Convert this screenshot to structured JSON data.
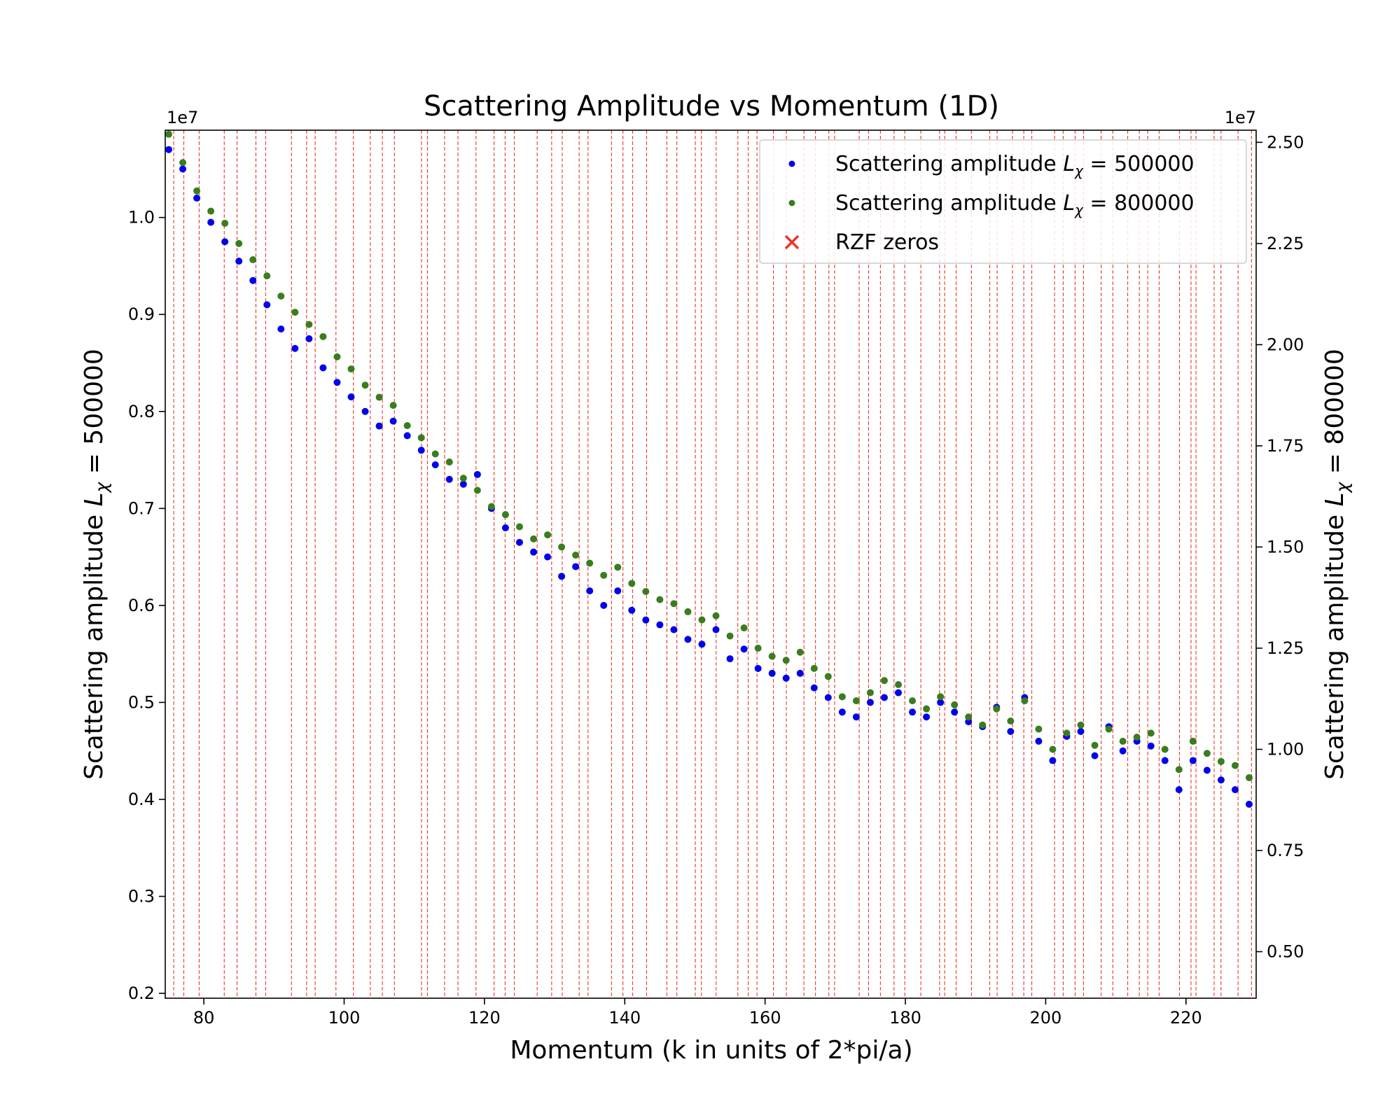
{
  "chart_data": {
    "type": "scatter",
    "title": "Scattering Amplitude vs Momentum (1D)",
    "xlabel": "Momentum (k in units of 2*pi/a)",
    "ylabel_left": {
      "prefix": "Scattering amplitude ",
      "symbol": "L",
      "sub": "χ",
      "suffix": " = 500000"
    },
    "ylabel_right": {
      "prefix": "Scattering amplitude ",
      "symbol": "L",
      "sub": "χ",
      "suffix": " = 800000"
    },
    "xlim": [
      74.5,
      230
    ],
    "ylim_left": [
      0.195,
      1.09
    ],
    "ylim_right": [
      0.385,
      2.53
    ],
    "y_offset_left": "1e7",
    "y_offset_right": "1e7",
    "x_ticks": [
      80,
      100,
      120,
      140,
      160,
      180,
      200,
      220
    ],
    "x_tick_labels": [
      "80",
      "100",
      "120",
      "140",
      "160",
      "180",
      "200",
      "220"
    ],
    "y_ticks_left": [
      0.2,
      0.3,
      0.4,
      0.5,
      0.6,
      0.7,
      0.8,
      0.9,
      1.0
    ],
    "y_tick_labels_left": [
      "0.2",
      "0.3",
      "0.4",
      "0.5",
      "0.6",
      "0.7",
      "0.8",
      "0.9",
      "1.0"
    ],
    "y_ticks_right": [
      0.5,
      0.75,
      1.0,
      1.25,
      1.5,
      1.75,
      2.0,
      2.25,
      2.5
    ],
    "y_tick_labels_right": [
      "0.50",
      "0.75",
      "1.00",
      "1.25",
      "1.50",
      "1.75",
      "2.00",
      "2.25",
      "2.50"
    ],
    "legend_position": "top-right",
    "grid": false,
    "colors": {
      "series_500000": "#0000ee",
      "series_800000": "#3a7d1e",
      "rzf_zeros": "#e8372a"
    },
    "rzf_zeros": [
      75.705,
      77.145,
      79.337,
      82.91,
      84.735,
      87.425,
      88.809,
      92.492,
      94.651,
      95.871,
      98.831,
      101.318,
      103.726,
      105.447,
      107.169,
      111.03,
      111.875,
      114.32,
      116.227,
      118.791,
      121.37,
      122.947,
      124.257,
      127.517,
      129.579,
      131.088,
      133.498,
      134.757,
      138.116,
      139.736,
      141.124,
      143.112,
      146.001,
      147.423,
      150.054,
      150.925,
      153.025,
      156.113,
      157.598,
      158.85,
      161.189,
      163.031,
      165.537,
      167.184,
      169.095,
      169.912,
      173.412,
      174.754,
      176.441,
      178.377,
      179.916,
      182.207,
      184.874,
      185.599,
      187.229,
      189.416,
      192.027,
      193.08,
      195.265,
      196.876,
      198.015,
      201.265,
      202.494,
      204.19,
      205.395,
      207.906,
      209.577,
      211.691,
      213.348,
      214.547,
      216.17,
      219.068,
      220.715,
      221.431,
      224.007,
      224.983,
      227.421,
      229.337
    ],
    "series": [
      {
        "name": "Scattering amplitude L_χ = 500000",
        "legend": {
          "prefix": "Scattering amplitude ",
          "symbol": "L",
          "sub": "χ",
          "suffix": " = 500000"
        },
        "axis": "left",
        "color": "#0000ee",
        "x": [
          75,
          77,
          79,
          81,
          83,
          85,
          87,
          89,
          91,
          93,
          95,
          97,
          99,
          101,
          103,
          105,
          107,
          109,
          111,
          113,
          115,
          117,
          119,
          121,
          123,
          125,
          127,
          129,
          131,
          133,
          135,
          137,
          139,
          141,
          143,
          145,
          147,
          149,
          151,
          153,
          155,
          157,
          159,
          161,
          163,
          165,
          167,
          169,
          171,
          173,
          175,
          177,
          179,
          181,
          183,
          185,
          187,
          189,
          191,
          193,
          195,
          197,
          199,
          201,
          203,
          205,
          207,
          209,
          211,
          213,
          215,
          217,
          219,
          221,
          223,
          225,
          227,
          229
        ],
        "y": [
          1.07,
          1.05,
          1.02,
          0.995,
          0.975,
          0.955,
          0.935,
          0.91,
          0.885,
          0.865,
          0.875,
          0.845,
          0.83,
          0.815,
          0.8,
          0.785,
          0.79,
          0.775,
          0.76,
          0.745,
          0.73,
          0.725,
          0.735,
          0.7,
          0.68,
          0.665,
          0.655,
          0.65,
          0.63,
          0.64,
          0.615,
          0.6,
          0.615,
          0.595,
          0.585,
          0.58,
          0.575,
          0.565,
          0.56,
          0.575,
          0.545,
          0.555,
          0.535,
          0.53,
          0.525,
          0.53,
          0.515,
          0.505,
          0.49,
          0.485,
          0.5,
          0.505,
          0.51,
          0.49,
          0.485,
          0.5,
          0.49,
          0.48,
          0.475,
          0.495,
          0.47,
          0.505,
          0.46,
          0.44,
          0.465,
          0.47,
          0.445,
          0.475,
          0.45,
          0.46,
          0.455,
          0.44,
          0.41,
          0.44,
          0.43,
          0.42,
          0.41,
          0.395
        ]
      },
      {
        "name": "Scattering amplitude L_χ = 800000",
        "legend": {
          "prefix": "Scattering amplitude ",
          "symbol": "L",
          "sub": "χ",
          "suffix": " = 800000"
        },
        "axis": "right",
        "color": "#3a7d1e",
        "x": [
          75,
          77,
          79,
          81,
          83,
          85,
          87,
          89,
          91,
          93,
          95,
          97,
          99,
          101,
          103,
          105,
          107,
          109,
          111,
          113,
          115,
          117,
          119,
          121,
          123,
          125,
          127,
          129,
          131,
          133,
          135,
          137,
          139,
          141,
          143,
          145,
          147,
          149,
          151,
          153,
          155,
          157,
          159,
          161,
          163,
          165,
          167,
          169,
          171,
          173,
          175,
          177,
          179,
          181,
          183,
          185,
          187,
          189,
          191,
          193,
          195,
          197,
          199,
          201,
          203,
          205,
          207,
          209,
          211,
          213,
          215,
          217,
          219,
          221,
          223,
          225,
          227,
          229
        ],
        "y": [
          2.52,
          2.45,
          2.38,
          2.33,
          2.3,
          2.25,
          2.21,
          2.17,
          2.12,
          2.08,
          2.05,
          2.02,
          1.97,
          1.94,
          1.9,
          1.87,
          1.85,
          1.8,
          1.77,
          1.73,
          1.71,
          1.67,
          1.64,
          1.6,
          1.58,
          1.55,
          1.52,
          1.53,
          1.5,
          1.48,
          1.46,
          1.43,
          1.45,
          1.41,
          1.39,
          1.37,
          1.36,
          1.34,
          1.32,
          1.33,
          1.28,
          1.3,
          1.25,
          1.23,
          1.22,
          1.24,
          1.2,
          1.18,
          1.13,
          1.12,
          1.14,
          1.17,
          1.16,
          1.12,
          1.1,
          1.13,
          1.11,
          1.08,
          1.06,
          1.1,
          1.07,
          1.12,
          1.05,
          1.0,
          1.04,
          1.06,
          1.01,
          1.05,
          1.02,
          1.03,
          1.04,
          1.0,
          0.95,
          1.02,
          0.99,
          0.97,
          0.96,
          0.93
        ]
      }
    ],
    "legend_entries": [
      {
        "type": "dot",
        "color": "#0000ee",
        "prefix": "Scattering amplitude ",
        "symbol": "L",
        "sub": "χ",
        "suffix": " = 500000"
      },
      {
        "type": "dot",
        "color": "#3a7d1e",
        "prefix": "Scattering amplitude ",
        "symbol": "L",
        "sub": "χ",
        "suffix": " = 800000"
      },
      {
        "type": "x",
        "color": "#e8372a",
        "text": "RZF zeros"
      }
    ]
  }
}
